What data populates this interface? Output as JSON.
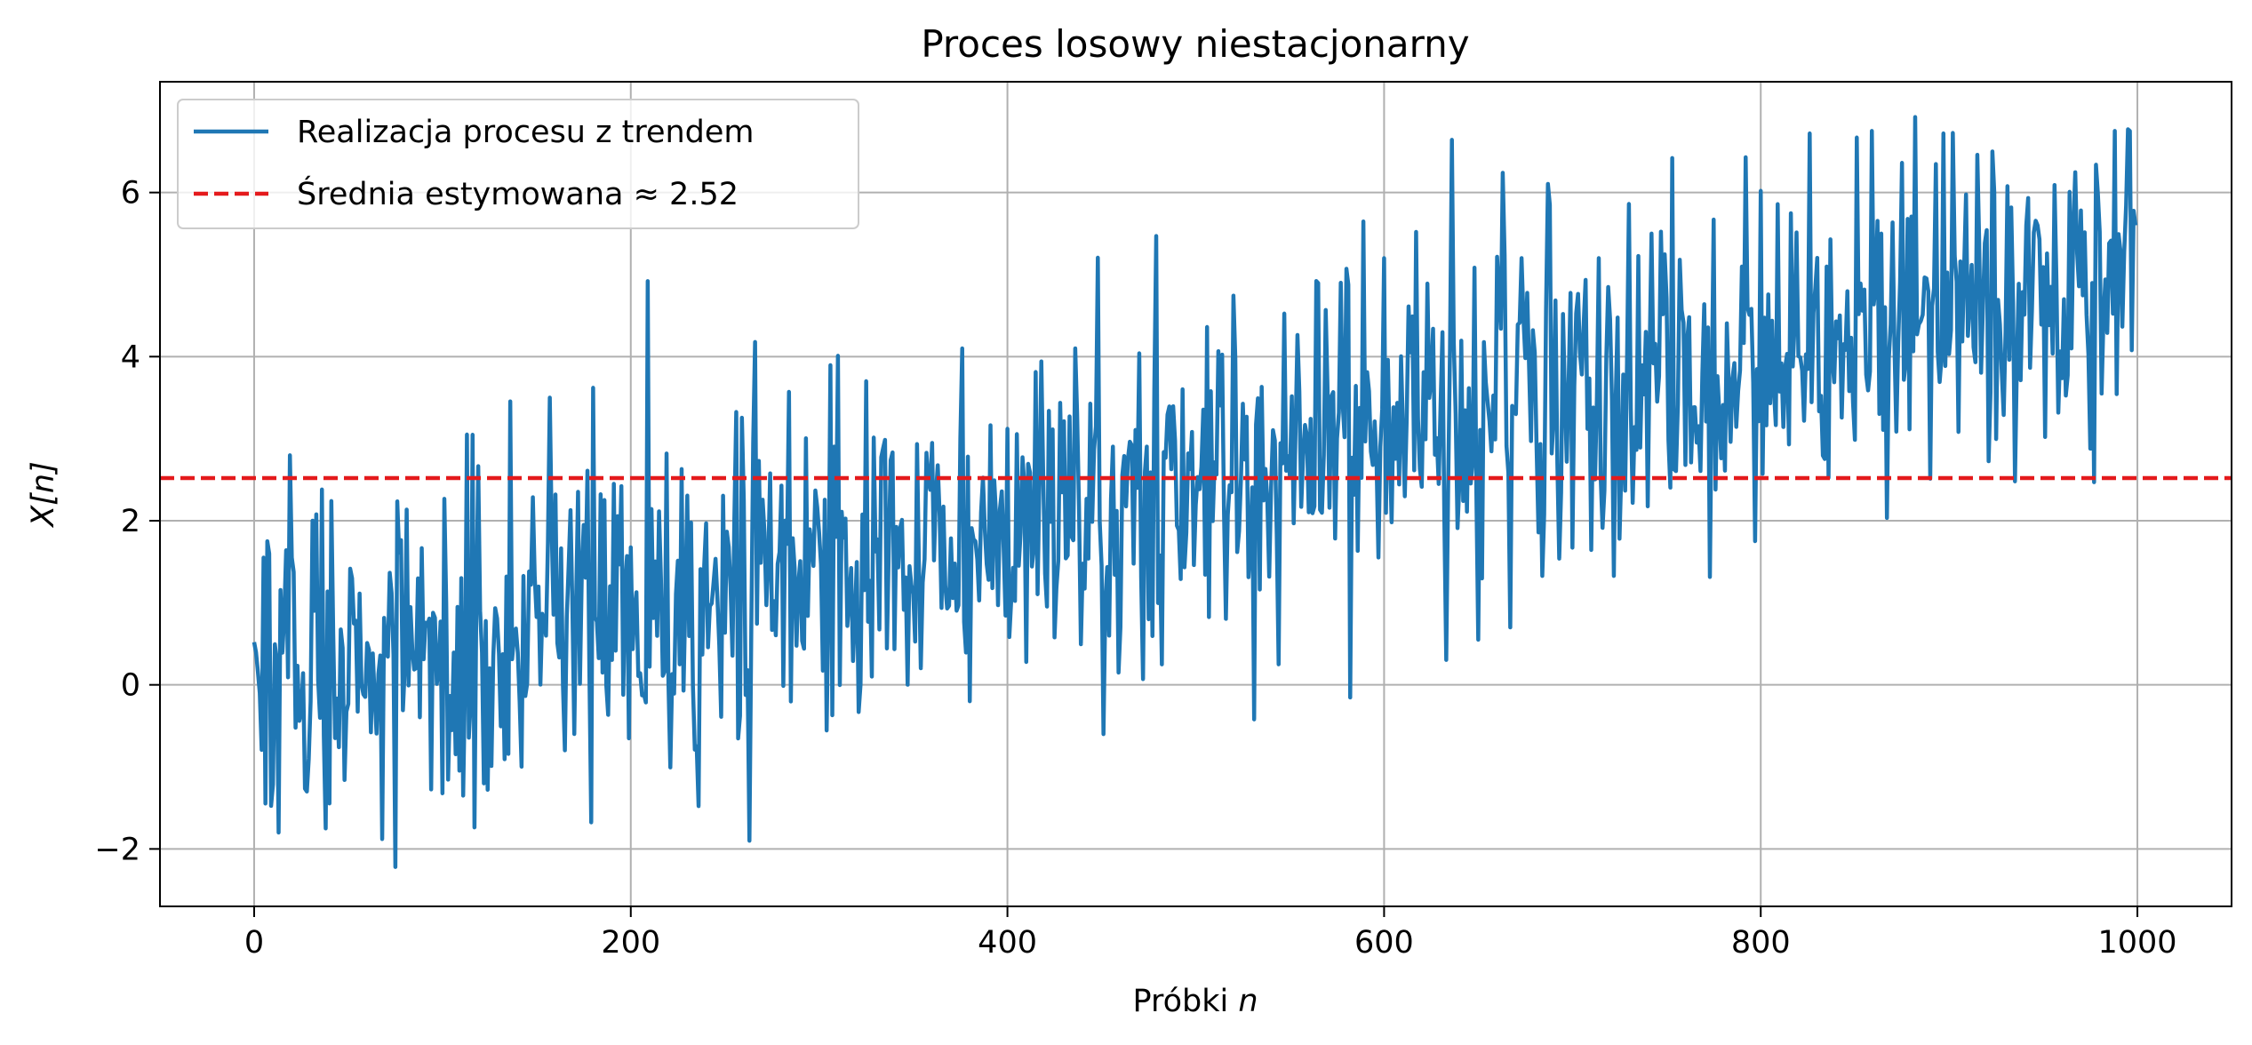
{
  "colors": {
    "series": "#1f77b4",
    "mean_line": "#e41a1c",
    "grid": "#b0b0b0",
    "axes": "#000000",
    "background": "#ffffff"
  },
  "chart_data": {
    "type": "line",
    "title": "Proces losowy niestacjonarny",
    "xlabel": "Próbki",
    "xlabel_var": "n",
    "ylabel": "X[n]",
    "xlim": [
      -50,
      1050
    ],
    "ylim": [
      -2.7,
      7.35
    ],
    "grid": true,
    "legend_position": "top-left",
    "x_ticks": [
      0,
      200,
      400,
      600,
      800,
      1000
    ],
    "x_tick_labels": [
      "0",
      "200",
      "400",
      "600",
      "800",
      "1000"
    ],
    "y_ticks": [
      -2,
      0,
      2,
      4,
      6
    ],
    "y_tick_labels": [
      "−2",
      "0",
      "2",
      "4",
      "6"
    ],
    "legend": [
      {
        "label": "Realizacja procesu z trendem",
        "style": "solid"
      },
      {
        "label": "Średnia estymowana ≈ 2.52",
        "style": "dashed"
      }
    ],
    "mean_value": 2.52,
    "series": [
      {
        "name": "Realizacja procesu z trendem",
        "trend": {
          "start": 0.0,
          "end": 5.0,
          "x_start": 0,
          "x_end": 999
        },
        "n_points": 1000,
        "noise_std": 1.0,
        "points": [
          [
            0,
            0.52
          ],
          [
            3,
            -0.1
          ],
          [
            5,
            1.55
          ],
          [
            8,
            1.6
          ],
          [
            12,
            0.3
          ],
          [
            13,
            -1.8
          ],
          [
            20,
            1.55
          ],
          [
            28,
            -1.3
          ],
          [
            31,
            2.0
          ],
          [
            38,
            -1.75
          ],
          [
            52,
            1.3
          ],
          [
            75,
            -2.22
          ],
          [
            111,
            -1.35
          ],
          [
            113,
            3.05
          ],
          [
            157,
            3.5
          ],
          [
            180,
            3.62
          ],
          [
            209,
            4.92
          ],
          [
            235,
            -0.75
          ],
          [
            263,
            -1.9
          ],
          [
            284,
            3.57
          ],
          [
            325,
            3.7
          ],
          [
            376,
            4.1
          ],
          [
            380,
            -0.2
          ],
          [
            459,
            0.15
          ],
          [
            472,
            0.07
          ],
          [
            479,
            5.47
          ],
          [
            544,
            0.25
          ],
          [
            577,
            4.9
          ],
          [
            600,
            5.2
          ],
          [
            617,
            5.52
          ],
          [
            650,
            0.55
          ],
          [
            667,
            0.7
          ],
          [
            688,
            5.85
          ],
          [
            714,
            5.2
          ],
          [
            753,
            6.42
          ],
          [
            775,
            5.67
          ],
          [
            800,
            6.02
          ],
          [
            826,
            6.72
          ],
          [
            851,
            6.67
          ],
          [
            882,
            6.92
          ],
          [
            897,
            6.72
          ],
          [
            935,
            2.48
          ],
          [
            977,
            2.47
          ],
          [
            995,
            6.77
          ],
          [
            999,
            5.6
          ]
        ]
      }
    ]
  }
}
